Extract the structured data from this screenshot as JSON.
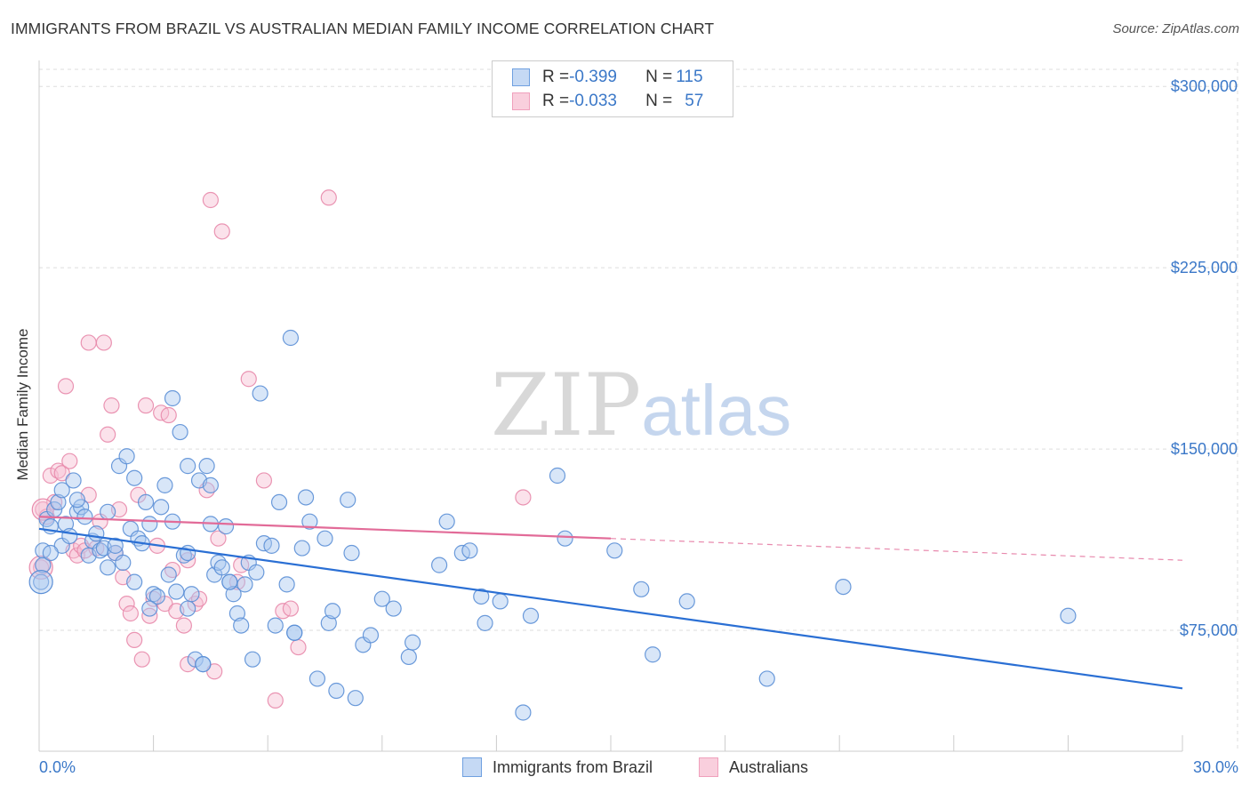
{
  "title": "IMMIGRANTS FROM BRAZIL VS AUSTRALIAN MEDIAN FAMILY INCOME CORRELATION CHART",
  "source": "Source: ZipAtlas.com",
  "watermark": {
    "zip": "ZIP",
    "atlas": "atlas"
  },
  "legend": {
    "rows": [
      {
        "r_label": "R = ",
        "r_value": "-0.399",
        "n_label": "N = ",
        "n_value": "115",
        "color": "#6fa0e0"
      },
      {
        "r_label": "R = ",
        "r_value": "-0.033",
        "n_label": "N = ",
        "n_value": "57",
        "color": "#f0a0bc"
      }
    ]
  },
  "bottom_legend": [
    {
      "label": "Immigrants from Brazil",
      "color": "#6fa0e0"
    },
    {
      "label": "Australians",
      "color": "#f0a0bc"
    }
  ],
  "colors": {
    "blue_fill": "#a9c8f0",
    "blue_stroke": "#5b8fd6",
    "blue_line": "#2a6fd4",
    "pink_fill": "#f7bfd2",
    "pink_stroke": "#e88aab",
    "pink_line": "#e26b98",
    "tick_text": "#3b78c8",
    "grid": "#dddddd"
  },
  "chart_data": {
    "type": "scatter",
    "ylabel": "Median Family Income",
    "xlim": [
      0,
      30
    ],
    "ylim": [
      25000,
      310000
    ],
    "x_tick_labels": [
      "0.0%",
      "30.0%"
    ],
    "y_ticks": [
      75000,
      150000,
      225000,
      300000
    ],
    "y_tick_labels": [
      "$75,000",
      "$150,000",
      "$225,000",
      "$300,000"
    ],
    "grid": true,
    "legend_position": "top-center",
    "series": [
      {
        "name": "Immigrants from Brazil",
        "color": "#6fa0e0",
        "trend": {
          "x": [
            0,
            30
          ],
          "y": [
            117000,
            51000
          ]
        },
        "points": [
          [
            0.1,
            108000
          ],
          [
            0.1,
            102000
          ],
          [
            0.2,
            121000
          ],
          [
            0.3,
            118000
          ],
          [
            0.4,
            125000
          ],
          [
            0.5,
            128000
          ],
          [
            0.6,
            133000
          ],
          [
            0.6,
            110000
          ],
          [
            0.7,
            119000
          ],
          [
            0.8,
            114000
          ],
          [
            0.9,
            137000
          ],
          [
            1.0,
            124000
          ],
          [
            1.1,
            126000
          ],
          [
            1.2,
            122000
          ],
          [
            1.3,
            106000
          ],
          [
            1.4,
            112000
          ],
          [
            1.5,
            115000
          ],
          [
            1.6,
            108000
          ],
          [
            1.7,
            109000
          ],
          [
            1.8,
            124000
          ],
          [
            1.8,
            101000
          ],
          [
            2.0,
            107000
          ],
          [
            2.0,
            110000
          ],
          [
            2.1,
            143000
          ],
          [
            2.2,
            103000
          ],
          [
            2.3,
            147000
          ],
          [
            2.4,
            117000
          ],
          [
            2.5,
            138000
          ],
          [
            2.5,
            95000
          ],
          [
            2.6,
            113000
          ],
          [
            2.7,
            111000
          ],
          [
            2.8,
            128000
          ],
          [
            2.9,
            119000
          ],
          [
            3.0,
            90000
          ],
          [
            3.1,
            89000
          ],
          [
            3.2,
            126000
          ],
          [
            3.3,
            135000
          ],
          [
            3.4,
            98000
          ],
          [
            3.5,
            171000
          ],
          [
            3.5,
            120000
          ],
          [
            3.6,
            91000
          ],
          [
            3.7,
            157000
          ],
          [
            3.8,
            106000
          ],
          [
            3.9,
            143000
          ],
          [
            3.9,
            84000
          ],
          [
            4.0,
            90000
          ],
          [
            4.1,
            63000
          ],
          [
            4.2,
            137000
          ],
          [
            4.3,
            61000
          ],
          [
            4.4,
            143000
          ],
          [
            4.5,
            135000
          ],
          [
            4.5,
            119000
          ],
          [
            4.6,
            98000
          ],
          [
            4.7,
            103000
          ],
          [
            4.8,
            101000
          ],
          [
            4.9,
            118000
          ],
          [
            5.0,
            95000
          ],
          [
            5.1,
            90000
          ],
          [
            5.2,
            82000
          ],
          [
            5.3,
            77000
          ],
          [
            5.4,
            94000
          ],
          [
            5.5,
            103000
          ],
          [
            5.6,
            63000
          ],
          [
            5.7,
            99000
          ],
          [
            5.8,
            173000
          ],
          [
            5.9,
            111000
          ],
          [
            6.1,
            110000
          ],
          [
            6.2,
            77000
          ],
          [
            6.3,
            128000
          ],
          [
            6.5,
            94000
          ],
          [
            6.6,
            196000
          ],
          [
            6.7,
            74000
          ],
          [
            6.9,
            109000
          ],
          [
            7.0,
            130000
          ],
          [
            7.1,
            120000
          ],
          [
            7.3,
            55000
          ],
          [
            7.5,
            113000
          ],
          [
            7.6,
            78000
          ],
          [
            7.7,
            83000
          ],
          [
            7.8,
            50000
          ],
          [
            8.1,
            129000
          ],
          [
            8.2,
            107000
          ],
          [
            8.3,
            47000
          ],
          [
            8.5,
            69000
          ],
          [
            8.7,
            73000
          ],
          [
            9.0,
            88000
          ],
          [
            9.3,
            84000
          ],
          [
            9.7,
            64000
          ],
          [
            9.8,
            70000
          ],
          [
            10.5,
            102000
          ],
          [
            10.7,
            120000
          ],
          [
            11.1,
            107000
          ],
          [
            11.3,
            108000
          ],
          [
            11.6,
            89000
          ],
          [
            11.7,
            78000
          ],
          [
            12.1,
            87000
          ],
          [
            12.7,
            41000
          ],
          [
            12.9,
            81000
          ],
          [
            13.6,
            139000
          ],
          [
            13.8,
            113000
          ],
          [
            15.1,
            108000
          ],
          [
            15.8,
            92000
          ],
          [
            16.1,
            65000
          ],
          [
            17.0,
            87000
          ],
          [
            19.1,
            55000
          ],
          [
            21.1,
            93000
          ],
          [
            27.0,
            81000
          ],
          [
            0.05,
            95000
          ],
          [
            0.3,
            107000
          ],
          [
            1.0,
            129000
          ],
          [
            2.9,
            84000
          ],
          [
            4.3,
            61000
          ],
          [
            5.0,
            95000
          ],
          [
            6.7,
            74000
          ],
          [
            3.9,
            107000
          ]
        ]
      },
      {
        "name": "Australians",
        "color": "#f0a0bc",
        "trend": {
          "x": [
            0,
            15
          ],
          "y": [
            122000,
            113000
          ]
        },
        "points": [
          [
            0.05,
            101000
          ],
          [
            0.1,
            125000
          ],
          [
            0.2,
            122000
          ],
          [
            0.3,
            139000
          ],
          [
            0.4,
            128000
          ],
          [
            0.5,
            141000
          ],
          [
            0.6,
            140000
          ],
          [
            0.7,
            176000
          ],
          [
            0.8,
            145000
          ],
          [
            0.9,
            108000
          ],
          [
            1.0,
            106000
          ],
          [
            1.1,
            110000
          ],
          [
            1.2,
            108000
          ],
          [
            1.3,
            131000
          ],
          [
            1.3,
            194000
          ],
          [
            1.5,
            109000
          ],
          [
            1.6,
            120000
          ],
          [
            1.7,
            194000
          ],
          [
            1.8,
            156000
          ],
          [
            1.9,
            168000
          ],
          [
            2.0,
            107000
          ],
          [
            2.1,
            125000
          ],
          [
            2.2,
            97000
          ],
          [
            2.3,
            86000
          ],
          [
            2.4,
            82000
          ],
          [
            2.5,
            71000
          ],
          [
            2.6,
            131000
          ],
          [
            2.7,
            63000
          ],
          [
            2.8,
            168000
          ],
          [
            2.9,
            81000
          ],
          [
            3.0,
            88000
          ],
          [
            3.1,
            110000
          ],
          [
            3.2,
            165000
          ],
          [
            3.3,
            86000
          ],
          [
            3.4,
            164000
          ],
          [
            3.5,
            100000
          ],
          [
            3.6,
            83000
          ],
          [
            3.8,
            77000
          ],
          [
            3.9,
            61000
          ],
          [
            3.9,
            104000
          ],
          [
            4.1,
            86000
          ],
          [
            4.2,
            88000
          ],
          [
            4.4,
            133000
          ],
          [
            4.5,
            253000
          ],
          [
            4.6,
            58000
          ],
          [
            4.7,
            113000
          ],
          [
            4.8,
            240000
          ],
          [
            5.2,
            95000
          ],
          [
            5.3,
            102000
          ],
          [
            5.5,
            179000
          ],
          [
            5.9,
            137000
          ],
          [
            6.2,
            46000
          ],
          [
            6.4,
            83000
          ],
          [
            6.6,
            84000
          ],
          [
            6.8,
            68000
          ],
          [
            7.6,
            254000
          ],
          [
            12.7,
            130000
          ]
        ]
      }
    ]
  }
}
